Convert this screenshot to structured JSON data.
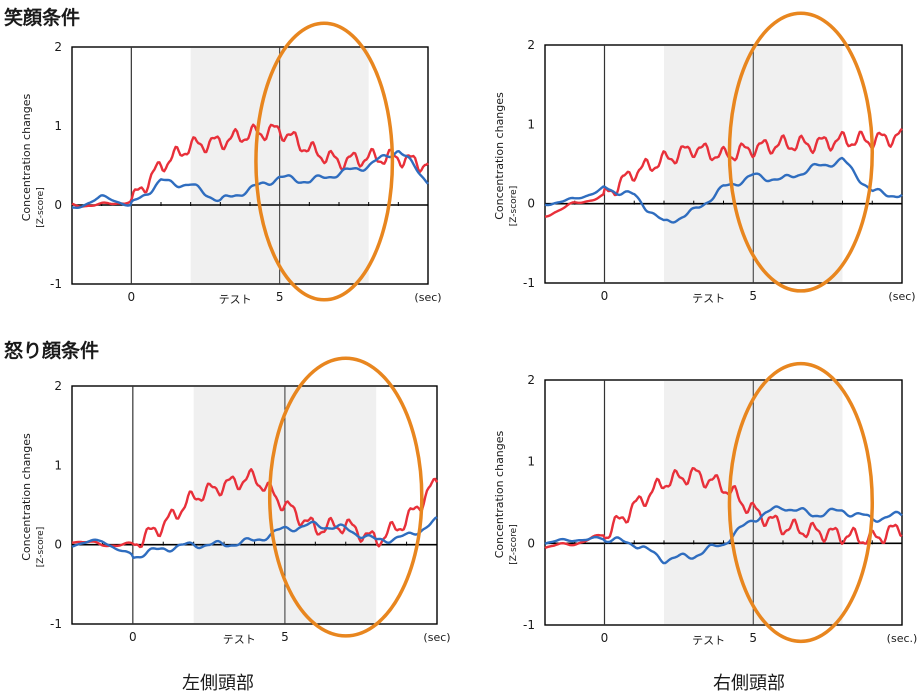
{
  "figure": {
    "condition_titles": [
      "笑顔条件",
      "怒り顔条件"
    ],
    "side_labels": [
      "左側頭部",
      "右側頭部"
    ]
  },
  "colors": {
    "red_series": "#e8303a",
    "blue_series": "#2f6dbf",
    "highlight_ellipse": "#e8861f",
    "test_band": "#f0f0f0",
    "axis": "#000000"
  },
  "chart_data": [
    {
      "type": "line",
      "panel": "smile-left",
      "ylabel": "Concentration changes",
      "ylabel_unit": "[Z-score]",
      "x_unit": "(sec)",
      "test_label": "テスト",
      "xlim": [
        -2,
        10
      ],
      "ylim": [
        -1,
        2
      ],
      "yticks": [
        "2",
        "1",
        "0",
        "-1"
      ],
      "xticks": [
        "0",
        "5"
      ],
      "test_band": [
        2,
        8
      ],
      "event_lines": [
        0,
        5
      ],
      "highlight_ellipse": {
        "x_range": [
          4.2,
          8.8
        ],
        "y_range": [
          -1.2,
          2.3
        ]
      },
      "series": [
        {
          "color": "red",
          "x": [
            -2,
            -1,
            0,
            1,
            2,
            3,
            4,
            5,
            6,
            7,
            8,
            9,
            10
          ],
          "y": [
            0,
            0,
            0.05,
            0.5,
            0.75,
            0.8,
            0.9,
            0.95,
            0.7,
            0.55,
            0.6,
            0.6,
            0.5
          ]
        },
        {
          "color": "blue",
          "x": [
            -2,
            -1,
            0,
            1,
            2,
            3,
            4,
            5,
            6,
            7,
            8,
            9,
            10
          ],
          "y": [
            -0.05,
            0.1,
            0,
            0.3,
            0.25,
            0.05,
            0.2,
            0.35,
            0.3,
            0.4,
            0.5,
            0.7,
            0.3
          ]
        }
      ]
    },
    {
      "type": "line",
      "panel": "smile-right",
      "ylabel": "Concentration changes",
      "ylabel_unit": "[Z-score]",
      "x_unit": "(sec)",
      "test_label": "テスト",
      "xlim": [
        -2,
        10
      ],
      "ylim": [
        -1,
        2
      ],
      "yticks": [
        "2",
        "1",
        "0",
        "-1"
      ],
      "xticks": [
        "0",
        "5"
      ],
      "test_band": [
        2,
        8
      ],
      "event_lines": [
        0,
        5
      ],
      "highlight_ellipse": {
        "x_range": [
          4.2,
          9.0
        ],
        "y_range": [
          -1.1,
          2.4
        ]
      },
      "series": [
        {
          "color": "red",
          "x": [
            -2,
            -1,
            0,
            1,
            2,
            3,
            4,
            5,
            6,
            7,
            8,
            9,
            10
          ],
          "y": [
            -0.15,
            0,
            0.1,
            0.4,
            0.55,
            0.7,
            0.6,
            0.7,
            0.75,
            0.75,
            0.8,
            0.8,
            0.85
          ]
        },
        {
          "color": "blue",
          "x": [
            -2,
            -1,
            0,
            1,
            2,
            3,
            4,
            5,
            6,
            7,
            8,
            9,
            10
          ],
          "y": [
            0,
            0.05,
            0.2,
            0.1,
            -0.25,
            -0.1,
            0.2,
            0.35,
            0.3,
            0.45,
            0.55,
            0.15,
            0.1
          ]
        }
      ]
    },
    {
      "type": "line",
      "panel": "angry-left",
      "ylabel": "Concentration changes",
      "ylabel_unit": "[Z-score]",
      "x_unit": "(sec)",
      "test_label": "テスト",
      "xlim": [
        -2,
        10
      ],
      "ylim": [
        -1,
        2
      ],
      "yticks": [
        "2",
        "1",
        "0",
        "-1"
      ],
      "xticks": [
        "0",
        "5"
      ],
      "test_band": [
        2,
        8
      ],
      "event_lines": [
        0,
        5
      ],
      "highlight_ellipse": {
        "x_range": [
          4.5,
          9.5
        ],
        "y_range": [
          -1.15,
          2.35
        ]
      },
      "series": [
        {
          "color": "red",
          "x": [
            -2,
            -1,
            0,
            1,
            2,
            3,
            4,
            5,
            6,
            7,
            8,
            9,
            10
          ],
          "y": [
            0.05,
            0,
            0,
            0.25,
            0.6,
            0.75,
            0.85,
            0.5,
            0.2,
            0.25,
            0.05,
            0.3,
            0.8
          ]
        },
        {
          "color": "blue",
          "x": [
            -2,
            -1,
            0,
            1,
            2,
            3,
            4,
            5,
            6,
            7,
            8,
            9,
            10
          ],
          "y": [
            0,
            0.05,
            -0.15,
            -0.05,
            0,
            0,
            0.05,
            0.2,
            0.25,
            0.2,
            0.05,
            0.1,
            0.3
          ]
        }
      ]
    },
    {
      "type": "line",
      "panel": "angry-right",
      "ylabel": "Concentration changes",
      "ylabel_unit": "[Z-score]",
      "x_unit": "(sec.)",
      "test_label": "テスト",
      "xlim": [
        -2,
        10
      ],
      "ylim": [
        -1,
        2
      ],
      "yticks": [
        "2",
        "1",
        "0",
        "-1"
      ],
      "xticks": [
        "0",
        "5"
      ],
      "test_band": [
        2,
        8
      ],
      "event_lines": [
        0,
        5
      ],
      "highlight_ellipse": {
        "x_range": [
          4.2,
          9.0
        ],
        "y_range": [
          -1.2,
          2.2
        ]
      },
      "series": [
        {
          "color": "red",
          "x": [
            -2,
            -1,
            0,
            1,
            2,
            3,
            4,
            5,
            6,
            7,
            8,
            9,
            10
          ],
          "y": [
            -0.05,
            0,
            0.1,
            0.45,
            0.75,
            0.85,
            0.7,
            0.4,
            0.2,
            0.15,
            0.1,
            0.05,
            0.2
          ]
        },
        {
          "color": "blue",
          "x": [
            -2,
            -1,
            0,
            1,
            2,
            3,
            4,
            5,
            6,
            7,
            8,
            9,
            10
          ],
          "y": [
            0,
            0.05,
            0.05,
            0,
            -0.2,
            -0.15,
            0,
            0.3,
            0.45,
            0.35,
            0.4,
            0.3,
            0.35
          ]
        }
      ]
    }
  ]
}
